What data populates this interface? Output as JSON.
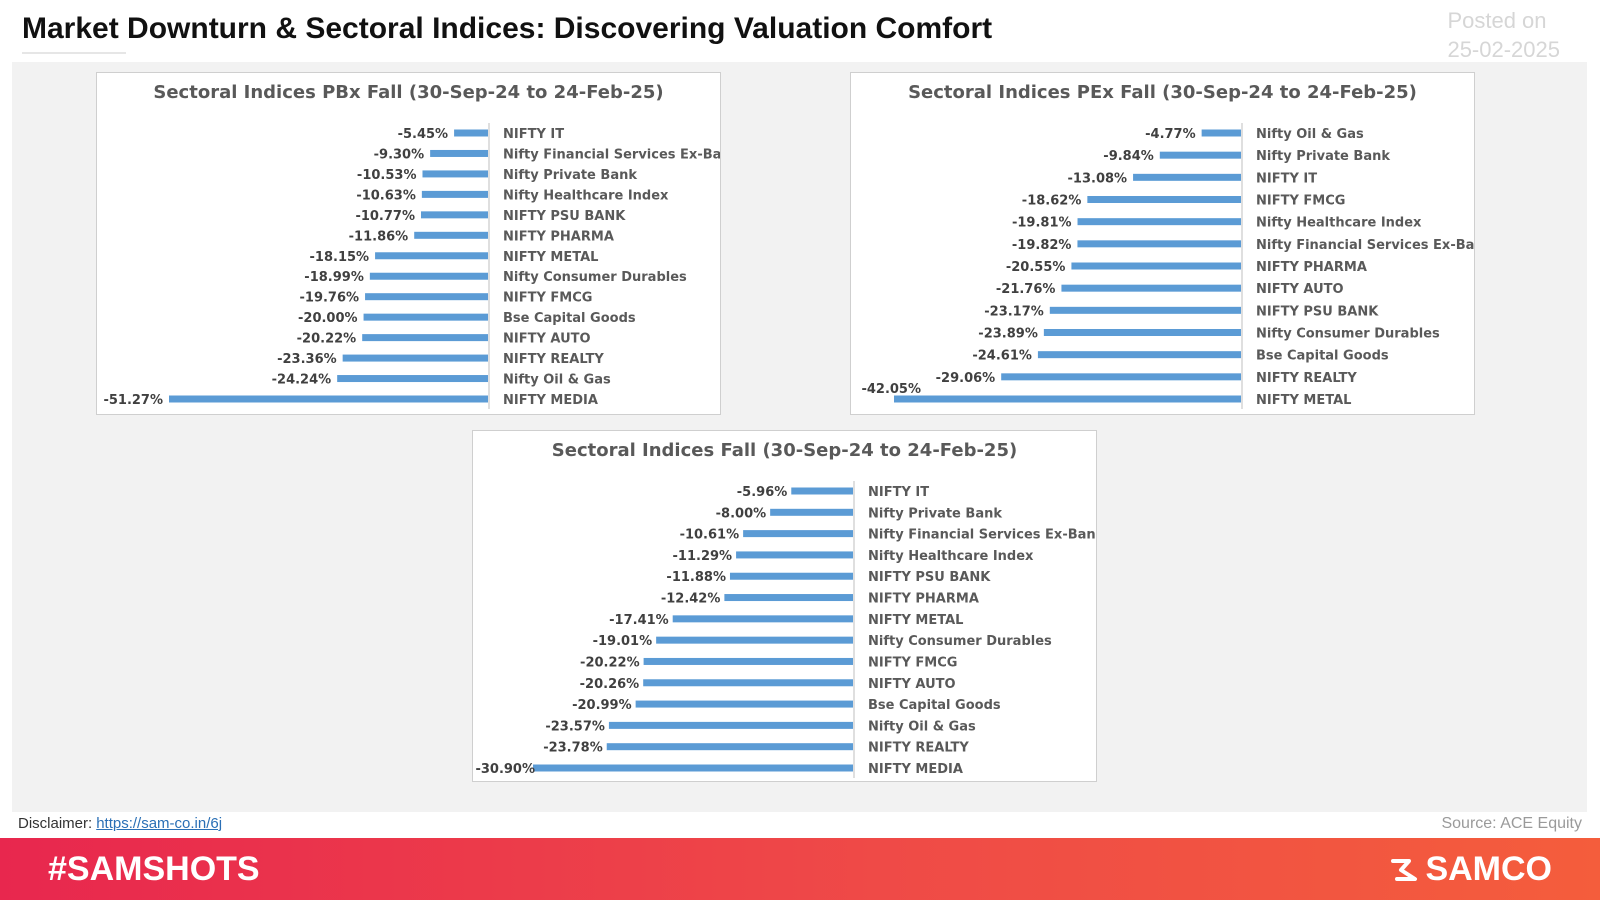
{
  "header": {
    "title": "Market Downturn & Sectoral Indices: Discovering Valuation Comfort",
    "posted_label": "Posted on",
    "posted_date": "25-02-2025"
  },
  "footer": {
    "disclaimer_label": "Disclaimer:",
    "disclaimer_link": "https://sam-co.in/6j",
    "source": "Source: ACE Equity",
    "hashtag": "#SAMSHOTS",
    "brand": "SAMCO",
    "brand_icon": "samco-logo-icon"
  },
  "colors": {
    "bar": "#5b9bd5",
    "footer_start": "#e8274e",
    "footer_end": "#f45d3c",
    "text": "#333333"
  },
  "chart_data": [
    {
      "type": "bar",
      "orientation": "horizontal",
      "title": "Sectoral Indices PBx Fall (30-Sep-24 to 24-Feb-25)",
      "categories": [
        "NIFTY IT",
        "Nifty Financial Services Ex-Bank",
        "Nifty Private Bank",
        "Nifty Healthcare Index",
        "NIFTY PSU BANK",
        "NIFTY PHARMA",
        "NIFTY METAL",
        "Nifty Consumer Durables",
        "NIFTY FMCG",
        "Bse Capital Goods",
        "NIFTY AUTO",
        "NIFTY REALTY",
        "Nifty Oil & Gas",
        "NIFTY MEDIA"
      ],
      "values": [
        -5.45,
        -9.3,
        -10.53,
        -10.63,
        -10.77,
        -11.86,
        -18.15,
        -18.99,
        -19.76,
        -20.0,
        -20.22,
        -23.36,
        -24.24,
        -51.27
      ],
      "labels": [
        "-5.45%",
        "-9.30%",
        "-10.53%",
        "-10.63%",
        "-10.77%",
        "-11.86%",
        "-18.15%",
        "-18.99%",
        "-19.76%",
        "-20.00%",
        "-20.22%",
        "-23.36%",
        "-24.24%",
        "-51.27%"
      ],
      "xlim": [
        -51.27,
        0
      ],
      "grid": false,
      "legend": "none"
    },
    {
      "type": "bar",
      "orientation": "horizontal",
      "title": "Sectoral Indices PEx Fall (30-Sep-24 to 24-Feb-25)",
      "categories": [
        "Nifty Oil & Gas",
        "Nifty Private Bank",
        "NIFTY IT",
        "NIFTY FMCG",
        "Nifty Healthcare Index",
        "Nifty Financial Services Ex-Bank",
        "NIFTY PHARMA",
        "NIFTY AUTO",
        "NIFTY PSU BANK",
        "Nifty Consumer Durables",
        "Bse Capital Goods",
        "NIFTY REALTY",
        "NIFTY METAL"
      ],
      "values": [
        -4.77,
        -9.84,
        -13.08,
        -18.62,
        -19.81,
        -19.82,
        -20.55,
        -21.76,
        -23.17,
        -23.89,
        -24.61,
        -29.06,
        -42.05
      ],
      "labels": [
        "-4.77%",
        "-9.84%",
        "-13.08%",
        "-18.62%",
        "-19.81%",
        "-19.82%",
        "-20.55%",
        "-21.76%",
        "-23.17%",
        "-23.89%",
        "-24.61%",
        "-29.06%",
        "-42.05%"
      ],
      "xlim": [
        -42.05,
        0
      ],
      "grid": false,
      "legend": "none"
    },
    {
      "type": "bar",
      "orientation": "horizontal",
      "title": "Sectoral Indices Fall (30-Sep-24 to 24-Feb-25)",
      "categories": [
        "NIFTY IT",
        "Nifty Private Bank",
        "Nifty Financial Services Ex-Bank",
        "Nifty Healthcare Index",
        "NIFTY PSU BANK",
        "NIFTY PHARMA",
        "NIFTY METAL",
        "Nifty Consumer Durables",
        "NIFTY FMCG",
        "NIFTY AUTO",
        "Bse Capital Goods",
        "Nifty Oil & Gas",
        "NIFTY REALTY",
        "NIFTY MEDIA"
      ],
      "values": [
        -5.96,
        -8.0,
        -10.61,
        -11.29,
        -11.88,
        -12.42,
        -17.41,
        -19.01,
        -20.22,
        -20.26,
        -20.99,
        -23.57,
        -23.78,
        -30.9
      ],
      "labels": [
        "-5.96%",
        "-8.00%",
        "-10.61%",
        "-11.29%",
        "-11.88%",
        "-12.42%",
        "-17.41%",
        "-19.01%",
        "-20.22%",
        "-20.26%",
        "-20.99%",
        "-23.57%",
        "-23.78%",
        "-30.90%"
      ],
      "xlim": [
        -30.9,
        0
      ],
      "grid": false,
      "legend": "none"
    }
  ]
}
